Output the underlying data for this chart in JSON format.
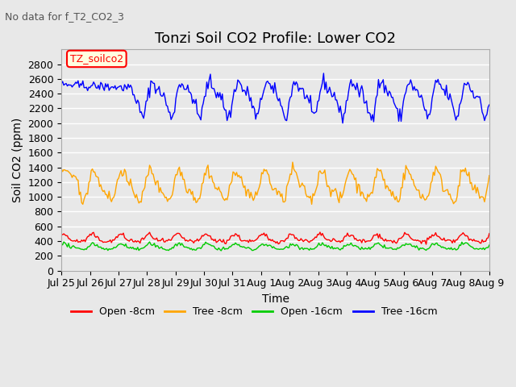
{
  "title": "Tonzi Soil CO2 Profile: Lower CO2",
  "subtitle": "No data for f_T2_CO2_3",
  "xlabel": "Time",
  "ylabel": "Soil CO2 (ppm)",
  "legend_label": "TZ_soilco2",
  "series_labels": [
    "Open -8cm",
    "Tree -8cm",
    "Open -16cm",
    "Tree -16cm"
  ],
  "series_colors": [
    "#ff0000",
    "#ffa500",
    "#00cc00",
    "#0000ff"
  ],
  "ylim": [
    0,
    3000
  ],
  "yticks": [
    0,
    200,
    400,
    600,
    800,
    1000,
    1200,
    1400,
    1600,
    1800,
    2000,
    2200,
    2400,
    2600,
    2800
  ],
  "xtick_positions": [
    0,
    1,
    2,
    3,
    4,
    5,
    6,
    7,
    8,
    9,
    10,
    11,
    12,
    13,
    14,
    15
  ],
  "xtick_labels": [
    "Jul 25",
    "Jul 26",
    "Jul 27",
    "Jul 28",
    "Jul 29",
    "Jul 30",
    "Jul 31",
    "Aug 1",
    "Aug 2",
    "Aug 3",
    "Aug 4",
    "Aug 5",
    "Aug 6",
    "Aug 7",
    "Aug 8",
    "Aug 9"
  ],
  "background_color": "#e8e8e8",
  "grid_color": "#ffffff",
  "title_fontsize": 13,
  "axis_fontsize": 10,
  "tick_fontsize": 9
}
